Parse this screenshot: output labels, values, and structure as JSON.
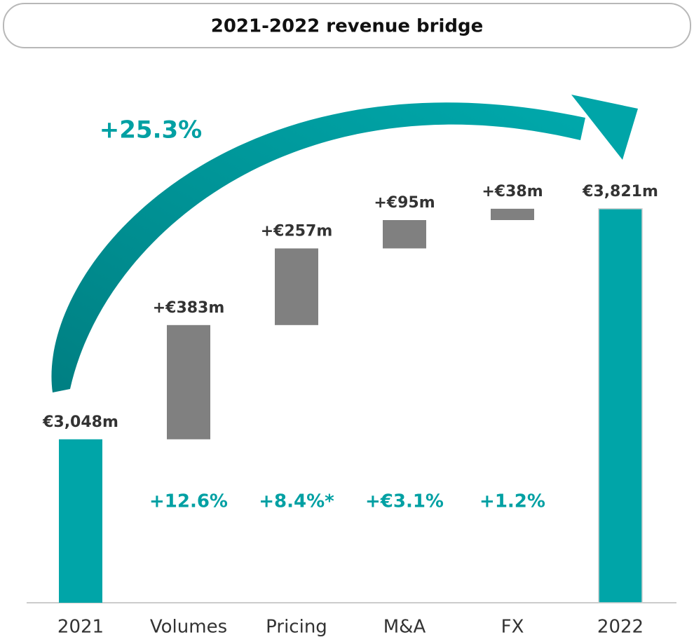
{
  "chart_data": {
    "type": "waterfall",
    "title": "2021-2022 revenue bridge",
    "categories": [
      "2021",
      "Volumes",
      "Pricing",
      "M&A",
      "FX",
      "2022"
    ],
    "measure": [
      "absolute",
      "relative",
      "relative",
      "relative",
      "relative",
      "total"
    ],
    "values": [
      3048,
      383,
      257,
      95,
      38,
      3821
    ],
    "value_labels": [
      "€3,048m",
      "+€383m",
      "+€257m",
      "+€95m",
      "+€38m",
      "€3,821m"
    ],
    "change_labels": [
      null,
      "+12.6%",
      "+8.4%*",
      "+€3.1%",
      "+1.2%",
      null
    ],
    "total_change_label": "+25.3%",
    "colors": {
      "absolute": "#00a5a8",
      "relative": "#808080",
      "total": "#00a5a8",
      "annotation": "#00a0a3"
    },
    "ylim": [
      2500,
      4300
    ]
  }
}
